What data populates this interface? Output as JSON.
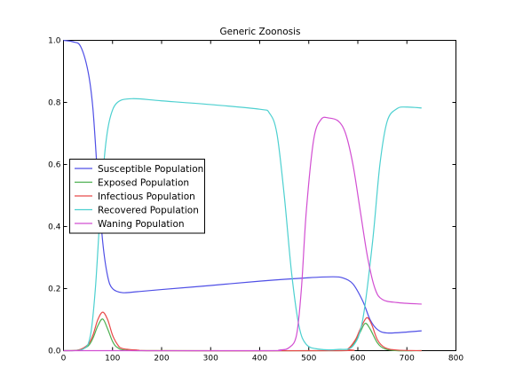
{
  "chart_data": {
    "type": "line",
    "title": "Generic Zoonosis",
    "xlabel": "",
    "ylabel": "",
    "xlim": [
      0,
      800
    ],
    "ylim": [
      0.0,
      1.0
    ],
    "xticks": [
      "0",
      "100",
      "200",
      "300",
      "400",
      "500",
      "600",
      "700",
      "800"
    ],
    "yticks": [
      "0.0",
      "0.2",
      "0.4",
      "0.6",
      "0.8",
      "1.0"
    ],
    "legend_position": "center-left",
    "grid": false,
    "series": [
      {
        "name": "Susceptible Population",
        "color": "#4f4fe6",
        "points": [
          [
            0,
            1.0
          ],
          [
            20,
            0.995
          ],
          [
            35,
            0.98
          ],
          [
            50,
            0.9
          ],
          [
            60,
            0.78
          ],
          [
            70,
            0.55
          ],
          [
            80,
            0.35
          ],
          [
            90,
            0.24
          ],
          [
            100,
            0.2
          ],
          [
            120,
            0.187
          ],
          [
            150,
            0.19
          ],
          [
            200,
            0.197
          ],
          [
            300,
            0.21
          ],
          [
            400,
            0.224
          ],
          [
            500,
            0.235
          ],
          [
            550,
            0.238
          ],
          [
            570,
            0.234
          ],
          [
            590,
            0.215
          ],
          [
            610,
            0.16
          ],
          [
            625,
            0.1
          ],
          [
            640,
            0.068
          ],
          [
            660,
            0.057
          ],
          [
            700,
            0.06
          ],
          [
            730,
            0.064
          ]
        ]
      },
      {
        "name": "Exposed Population",
        "color": "#4caf50",
        "points": [
          [
            0,
            0.0
          ],
          [
            30,
            0.002
          ],
          [
            50,
            0.015
          ],
          [
            60,
            0.04
          ],
          [
            70,
            0.08
          ],
          [
            80,
            0.102
          ],
          [
            90,
            0.07
          ],
          [
            100,
            0.03
          ],
          [
            110,
            0.01
          ],
          [
            130,
            0.001
          ],
          [
            200,
            0.0
          ],
          [
            560,
            0.0
          ],
          [
            580,
            0.005
          ],
          [
            595,
            0.03
          ],
          [
            605,
            0.06
          ],
          [
            615,
            0.088
          ],
          [
            625,
            0.07
          ],
          [
            640,
            0.025
          ],
          [
            655,
            0.006
          ],
          [
            680,
            0.0
          ],
          [
            730,
            0.0
          ]
        ]
      },
      {
        "name": "Infectious Population",
        "color": "#e84a4a",
        "points": [
          [
            0,
            0.0
          ],
          [
            30,
            0.002
          ],
          [
            50,
            0.02
          ],
          [
            60,
            0.05
          ],
          [
            70,
            0.1
          ],
          [
            80,
            0.124
          ],
          [
            90,
            0.1
          ],
          [
            100,
            0.05
          ],
          [
            110,
            0.02
          ],
          [
            120,
            0.007
          ],
          [
            150,
            0.002
          ],
          [
            200,
            0.0
          ],
          [
            560,
            0.0
          ],
          [
            580,
            0.006
          ],
          [
            595,
            0.035
          ],
          [
            605,
            0.07
          ],
          [
            618,
            0.106
          ],
          [
            628,
            0.085
          ],
          [
            640,
            0.035
          ],
          [
            655,
            0.01
          ],
          [
            680,
            0.002
          ],
          [
            730,
            0.0
          ]
        ]
      },
      {
        "name": "Recovered Population",
        "color": "#4dd0d0",
        "points": [
          [
            0,
            0.0
          ],
          [
            40,
            0.005
          ],
          [
            55,
            0.05
          ],
          [
            65,
            0.2
          ],
          [
            75,
            0.45
          ],
          [
            85,
            0.65
          ],
          [
            95,
            0.75
          ],
          [
            110,
            0.8
          ],
          [
            140,
            0.812
          ],
          [
            200,
            0.805
          ],
          [
            300,
            0.793
          ],
          [
            400,
            0.778
          ],
          [
            420,
            0.765
          ],
          [
            435,
            0.7
          ],
          [
            450,
            0.5
          ],
          [
            465,
            0.25
          ],
          [
            480,
            0.08
          ],
          [
            495,
            0.02
          ],
          [
            520,
            0.005
          ],
          [
            560,
            0.004
          ],
          [
            590,
            0.015
          ],
          [
            610,
            0.1
          ],
          [
            630,
            0.35
          ],
          [
            645,
            0.6
          ],
          [
            660,
            0.74
          ],
          [
            680,
            0.78
          ],
          [
            700,
            0.785
          ],
          [
            730,
            0.782
          ]
        ]
      },
      {
        "name": "Waning Population",
        "color": "#d24fd2",
        "points": [
          [
            0,
            0.0
          ],
          [
            400,
            0.0
          ],
          [
            440,
            0.002
          ],
          [
            460,
            0.01
          ],
          [
            475,
            0.05
          ],
          [
            485,
            0.2
          ],
          [
            495,
            0.45
          ],
          [
            510,
            0.68
          ],
          [
            525,
            0.745
          ],
          [
            540,
            0.75
          ],
          [
            560,
            0.74
          ],
          [
            575,
            0.7
          ],
          [
            590,
            0.6
          ],
          [
            605,
            0.45
          ],
          [
            620,
            0.3
          ],
          [
            635,
            0.2
          ],
          [
            650,
            0.165
          ],
          [
            680,
            0.155
          ],
          [
            730,
            0.15
          ]
        ]
      }
    ]
  }
}
